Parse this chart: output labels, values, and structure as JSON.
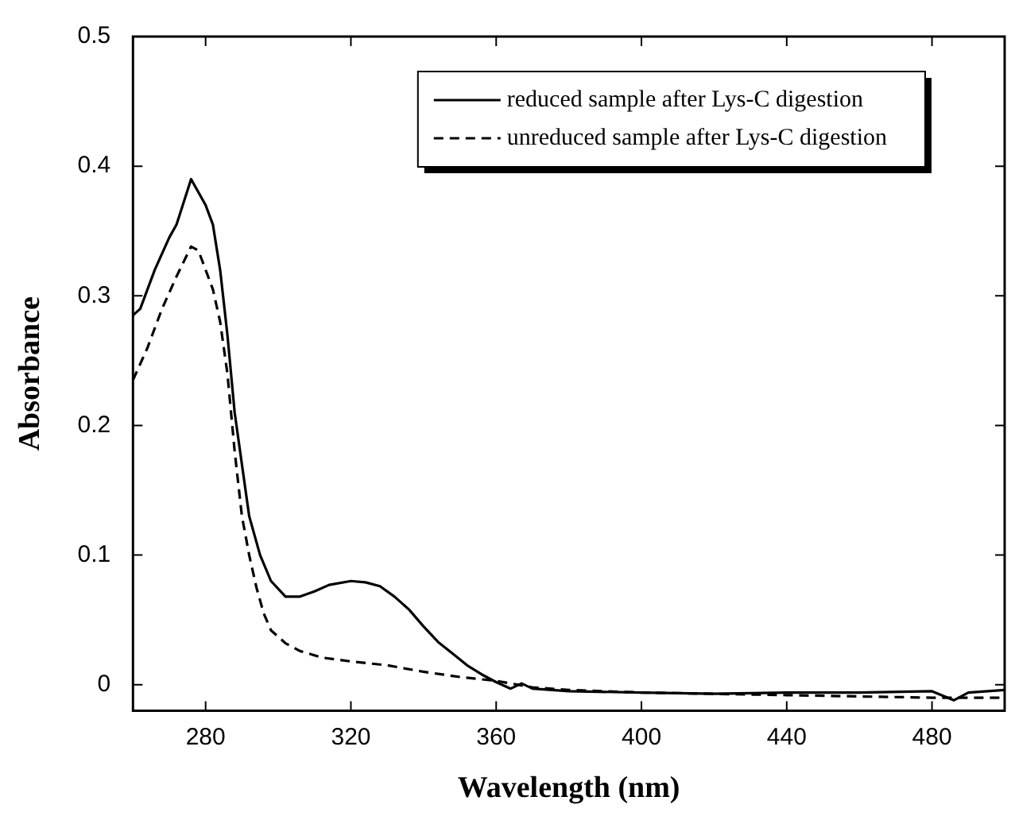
{
  "chart_data": {
    "type": "line",
    "xlabel": "Wavelength (nm)",
    "ylabel": "Absorbance",
    "xlim": [
      260,
      500
    ],
    "xticks": [
      280,
      320,
      360,
      400,
      440,
      480
    ],
    "ylim": [
      -0.02,
      0.5
    ],
    "yticks": [
      0,
      0.1,
      0.2,
      0.3,
      0.4,
      0.5
    ],
    "grid": false,
    "legend": "top right",
    "marker": "none",
    "series": [
      {
        "name": "reduced sample after Lys-C digestion",
        "color": "#000000",
        "line_style": "solid",
        "x": [
          260,
          262,
          266,
          270,
          272,
          276,
          280,
          282,
          284,
          286,
          288,
          290,
          292,
          295,
          298,
          302,
          306,
          310,
          314,
          320,
          324,
          328,
          332,
          336,
          340,
          344,
          348,
          352,
          356,
          360,
          364,
          367,
          370,
          380,
          400,
          420,
          440,
          460,
          480,
          486,
          490,
          500
        ],
        "values": [
          0.285,
          0.29,
          0.32,
          0.345,
          0.355,
          0.39,
          0.37,
          0.355,
          0.32,
          0.27,
          0.21,
          0.17,
          0.13,
          0.1,
          0.08,
          0.068,
          0.068,
          0.072,
          0.077,
          0.08,
          0.079,
          0.076,
          0.068,
          0.058,
          0.045,
          0.033,
          0.024,
          0.015,
          0.008,
          0.002,
          -0.003,
          0.001,
          -0.003,
          -0.005,
          -0.006,
          -0.007,
          -0.006,
          -0.006,
          -0.005,
          -0.012,
          -0.006,
          -0.004
        ]
      },
      {
        "name": "unreduced sample after Lys-C digestion",
        "color": "#000000",
        "line_style": "dashed",
        "x": [
          260,
          264,
          268,
          272,
          276,
          278,
          282,
          284,
          286,
          288,
          290,
          292,
          294,
          296,
          298,
          302,
          306,
          312,
          320,
          330,
          340,
          350,
          360,
          370,
          380,
          400,
          440,
          480,
          500
        ],
        "values": [
          0.235,
          0.26,
          0.29,
          0.315,
          0.338,
          0.335,
          0.305,
          0.28,
          0.24,
          0.18,
          0.13,
          0.1,
          0.075,
          0.055,
          0.042,
          0.032,
          0.026,
          0.021,
          0.018,
          0.015,
          0.01,
          0.006,
          0.003,
          -0.002,
          -0.004,
          -0.006,
          -0.008,
          -0.01,
          -0.01
        ]
      }
    ]
  }
}
